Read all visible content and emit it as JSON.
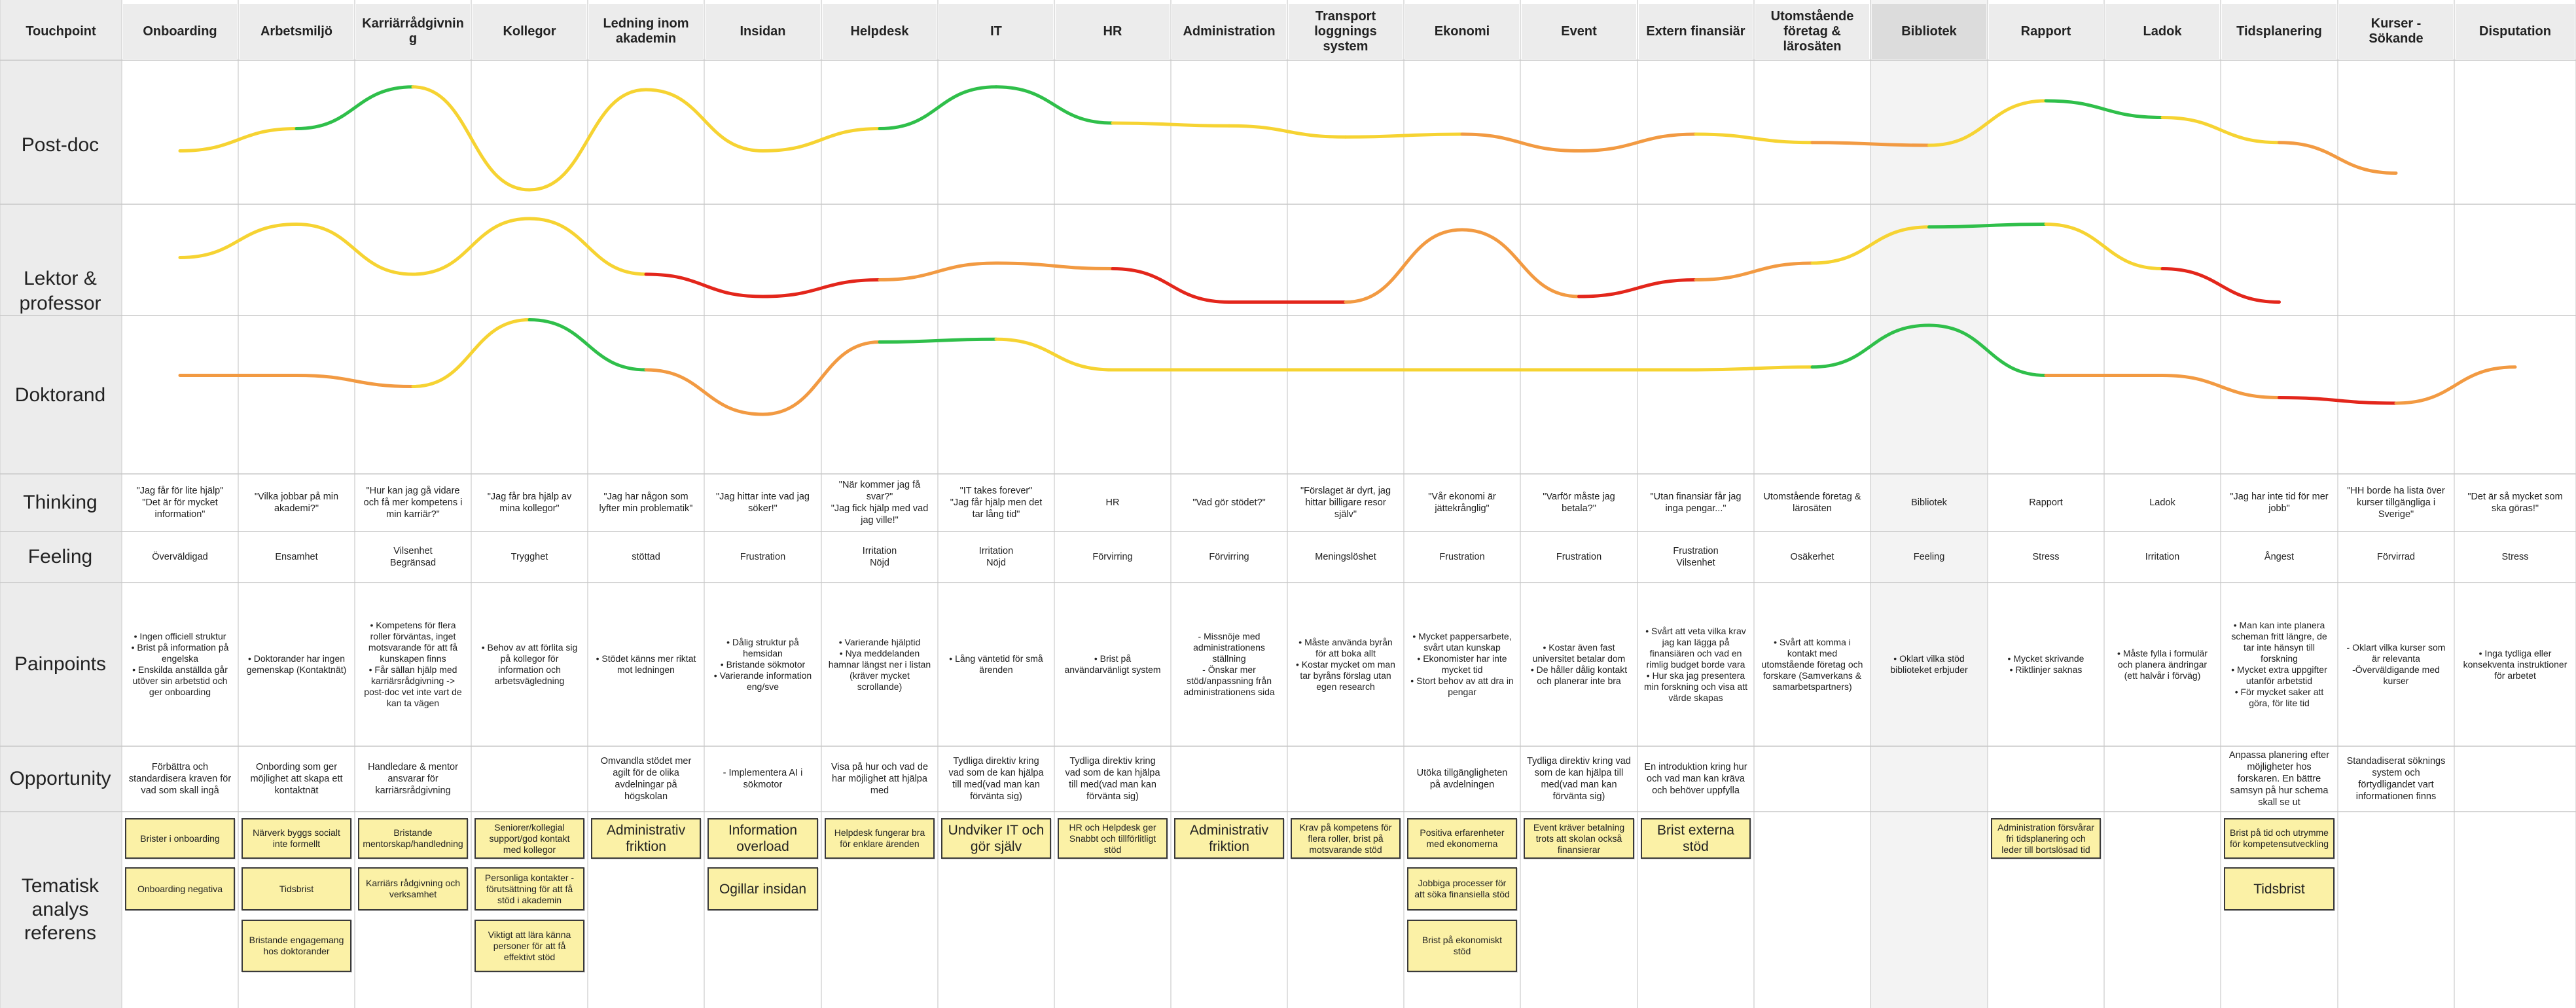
{
  "colors": {
    "green": "#2fbf4a",
    "yellow": "#f6d332",
    "orange": "#f29a42",
    "red": "#e3261b",
    "header_bg": "#ececec",
    "note_bg": "#fbf1a6"
  },
  "columns": [
    {
      "key": "touchpoint",
      "label": "Touchpoint"
    },
    {
      "key": "onboarding",
      "label": "Onboarding"
    },
    {
      "key": "arbetsmiljo",
      "label": "Arbetsmiljö"
    },
    {
      "key": "karriar",
      "label": "Karriärrådgivnin g"
    },
    {
      "key": "kollegor",
      "label": "Kollegor"
    },
    {
      "key": "ledning",
      "label": "Ledning inom akademin"
    },
    {
      "key": "insidan",
      "label": "Insidan"
    },
    {
      "key": "helpdesk",
      "label": "Helpdesk"
    },
    {
      "key": "it",
      "label": "IT"
    },
    {
      "key": "hr",
      "label": "HR"
    },
    {
      "key": "administration",
      "label": "Administration"
    },
    {
      "key": "transport",
      "label": "Transport loggnings system"
    },
    {
      "key": "ekonomi",
      "label": "Ekonomi"
    },
    {
      "key": "event",
      "label": "Event"
    },
    {
      "key": "extern",
      "label": "Extern finansiär"
    },
    {
      "key": "utomstaende",
      "label": "Utomstående företag & lärosäten"
    },
    {
      "key": "bibliotek",
      "label": "Bibliotek"
    },
    {
      "key": "rapport",
      "label": "Rapport"
    },
    {
      "key": "ladok",
      "label": "Ladok"
    },
    {
      "key": "tidsplanering",
      "label": "Tidsplanering"
    },
    {
      "key": "kurser",
      "label": "Kurser - Sökande"
    },
    {
      "key": "disputation",
      "label": "Disputation"
    }
  ],
  "personas": [
    {
      "label": "Post-doc",
      "levels": [
        -0.3,
        0.1,
        0.85,
        -1.0,
        0.8,
        -0.3,
        0.1,
        0.85,
        0.2,
        0.15,
        -0.05,
        0.0,
        -0.3,
        0.0,
        -0.15,
        -0.2,
        0.6,
        0.3,
        -0.15,
        -0.7
      ]
    },
    {
      "label": "Lektor & professor",
      "levels": [
        -0.1,
        0.5,
        -0.4,
        0.6,
        -0.4,
        -0.8,
        -0.5,
        -0.2,
        -0.3,
        -0.9,
        -0.9,
        0.4,
        -0.8,
        -0.5,
        -0.2,
        0.45,
        0.5,
        -0.3,
        -0.9
      ]
    },
    {
      "label": "Doktorand",
      "levels": [
        -0.1,
        -0.1,
        -0.3,
        0.9,
        0.0,
        -0.8,
        0.5,
        0.55,
        0.0,
        0.0,
        0.0,
        0.0,
        0.0,
        0.0,
        0.05,
        0.8,
        -0.1,
        -0.1,
        -0.5,
        -0.6,
        0.05
      ]
    }
  ],
  "rows": {
    "thinking": {
      "label": "Thinking",
      "cells": [
        "\"Jag får för lite hjälp\"\n\"Det är för mycket information\"",
        "\"Vilka jobbar på min akademi?\"",
        "\"Hur kan jag gå vidare och få mer kompetens i min karriär?\"",
        "\"Jag får bra hjälp av mina kollegor\"",
        "\"Jag har någon som lyfter min problematik\"",
        "\"Jag hittar inte vad jag söker!\"",
        "\"När kommer jag få svar?\"\n\"Jag fick hjälp med vad jag ville!\"",
        "\"IT takes forever\"\n\"Jag får hjälp men det tar lång tid\"",
        "HR",
        "\"Vad gör stödet?\"",
        "\"Förslaget är dyrt, jag hittar billigare resor själv\"",
        "\"Vår ekonomi är jättekrånglig\"",
        "\"Varför måste jag betala?\"",
        "\"Utan finansiär får jag inga pengar...\"",
        "Utomstående företag & lärosäten",
        "Bibliotek",
        "Rapport",
        "Ladok",
        "\"Jag har inte tid för mer jobb\"",
        "\"HH borde ha lista över kurser tillgängliga i Sverige\"",
        "\"Det är så mycket som ska göras!\""
      ]
    },
    "feeling": {
      "label": "Feeling",
      "cells": [
        "Överväldigad",
        "Ensamhet",
        "Vilsenhet\nBegränsad",
        "Trygghet",
        "stöttad",
        "Frustration",
        "Irritation\nNöjd",
        "Irritation\nNöjd",
        "Förvirring",
        "Förvirring",
        "Meningslöshet",
        "Frustration",
        "Frustration",
        "Frustration\nVilsenhet",
        "Osäkerhet",
        "Feeling",
        "Stress",
        "Irritation",
        "Ångest",
        "Förvirrad",
        "Stress"
      ]
    },
    "painpoints": {
      "label": "Painpoints",
      "cells": [
        "• Ingen officiell struktur\n• Brist på information på engelska\n• Enskilda anställda går utöver sin arbetstid och ger onboarding",
        "• Doktorander har ingen gemenskap (Kontaktnät)",
        "• Kompetens för flera roller förväntas, inget motsvarande för att få kunskapen finns\n• Får sällan hjälp med karriärsrådgivning -> post-doc vet inte vart de kan ta vägen",
        "• Behov av att förlita sig på kollegor för information och arbetsvägledning",
        "• Stödet känns mer riktat mot ledningen",
        "• Dålig struktur på hemsidan\n• Bristande sökmotor\n• Varierande information eng/sve",
        "• Varierande hjälptid\n• Nya meddelanden hamnar längst ner i listan (kräver mycket scrollande)",
        "• Lång väntetid för små ärenden",
        "• Brist på användarvänligt system",
        "- Missnöje med administrationens ställning\n- Önskar mer stöd/anpassning från administrationens sida",
        "• Måste använda byrån för att boka allt\n• Kostar mycket om man tar byråns förslag utan egen research",
        "• Mycket pappersarbete, svårt utan kunskap\n• Ekonomister har inte mycket tid\n• Stort behov av att dra in pengar",
        "• Kostar även fast universitet betalar dom\n• De håller dålig kontakt och planerar inte bra",
        "• Svårt att veta vilka krav jag kan lägga på finansiären och vad en rimlig budget borde vara\n• Hur ska jag presentera min forskning och visa att värde skapas",
        "• Svårt att komma i kontakt med utomstående företag och forskare (Samverkans & samarbetspartners)",
        "• Oklart vilka stöd biblioteket erbjuder",
        "• Mycket skrivande\n• Riktlinjer saknas",
        "• Måste fylla i formulär och planera ändringar (ett halvår i förväg)",
        "• Man kan inte planera scheman fritt längre, de tar inte hänsyn till forskning\n• Mycket extra uppgifter utanför arbetstid\n• För mycket saker att göra, för lite tid",
        "- Oklart vilka kurser som är relevanta\n-Överväldigande med kurser",
        "• Inga tydliga eller konsekventa instruktioner för arbetet"
      ]
    },
    "opportunity": {
      "label": "Opportunity",
      "cells": [
        "Förbättra och standardisera kraven för vad som skall ingå",
        "Onbording som ger möjlighet att skapa ett kontaktnät",
        "Handledare & mentor ansvarar för karriärsrådgivning",
        "",
        "Omvandla stödet mer agilt för de olika avdelningar på högskolan",
        "- Implementera AI i sökmotor",
        "Visa på hur och vad de har möjlighet att hjälpa med",
        "Tydliga direktiv kring vad som de kan hjälpa till med(vad man kan förvänta sig)",
        "Tydliga direktiv kring vad som de kan hjälpa till med(vad man kan förvänta sig)",
        "",
        "",
        "Utöka tillgängligheten på avdelningen",
        "Tydliga direktiv kring vad som de kan hjälpa till med(vad man kan förvänta sig)",
        "En introduktion kring hur och vad man kan kräva och behöver uppfylla",
        "",
        "",
        "",
        "",
        "Anpassa planering efter möjligheter hos forskaren. En bättre samsyn på hur schema skall se ut",
        "Standadiserat söknings system och förtydligandet vart informationen finns",
        ""
      ]
    },
    "tematisk": {
      "label": "Tematisk analys referens"
    }
  },
  "notes": [
    {
      "col": 1,
      "slot": 0,
      "text": "Brister i onboarding"
    },
    {
      "col": 1,
      "slot": 1,
      "text": "Onboarding negativa"
    },
    {
      "col": 2,
      "slot": 0,
      "text": "Närverk byggs socialt inte formellt"
    },
    {
      "col": 2,
      "slot": 1,
      "text": "Tidsbrist"
    },
    {
      "col": 2,
      "slot": 2,
      "text": "Bristande engagemang hos doktorander"
    },
    {
      "col": 3,
      "slot": 0,
      "text": "Bristande mentorskap/handledning"
    },
    {
      "col": 3,
      "slot": 1,
      "text": "Karriärs rådgivning och verksamhet"
    },
    {
      "col": 4,
      "slot": 0,
      "text": "Seniorer/kollegial support/god kontakt med kollegor"
    },
    {
      "col": 4,
      "slot": 1,
      "text": "Personliga kontakter - förutsättning för att få stöd i akademin"
    },
    {
      "col": 4,
      "slot": 2,
      "text": "Viktigt att lära känna personer för att få effektivt stöd"
    },
    {
      "col": 5,
      "slot": 0,
      "text": "Administrativ friktion",
      "big": true
    },
    {
      "col": 6,
      "slot": 0,
      "text": "Information overload",
      "big": true
    },
    {
      "col": 6,
      "slot": 1,
      "text": "Ogillar insidan",
      "big": true
    },
    {
      "col": 7,
      "slot": 0,
      "text": "Helpdesk fungerar bra för enklare ärenden"
    },
    {
      "col": 8,
      "slot": 0,
      "text": "Undviker IT och gör själv",
      "big": true
    },
    {
      "col": 9,
      "slot": 0,
      "text": "HR och Helpdesk ger Snabbt och tillförlitligt stöd"
    },
    {
      "col": 10,
      "slot": 0,
      "text": "Administrativ friktion",
      "big": true
    },
    {
      "col": 11,
      "slot": 0,
      "text": "Krav på kompetens för flera roller, brist på motsvarande stöd"
    },
    {
      "col": 12,
      "slot": 0,
      "text": "Positiva erfarenheter med ekonomerna"
    },
    {
      "col": 12,
      "slot": 1,
      "text": "Jobbiga processer för att söka finansiella stöd"
    },
    {
      "col": 12,
      "slot": 2,
      "text": "Brist på ekonomiskt stöd"
    },
    {
      "col": 13,
      "slot": 0,
      "text": "Event kräver betalning trots att skolan också finansierar"
    },
    {
      "col": 14,
      "slot": 0,
      "text": "Brist externa stöd",
      "big": true
    },
    {
      "col": 17,
      "slot": 0,
      "text": "Administration försvårar fri tidsplanering och leder till bortslösad tid"
    },
    {
      "col": 19,
      "slot": 0,
      "text": "Brist på tid och utrymme för kompetensutveckling"
    },
    {
      "col": 19,
      "slot": 1,
      "text": "Tidsbrist",
      "big": true
    }
  ]
}
